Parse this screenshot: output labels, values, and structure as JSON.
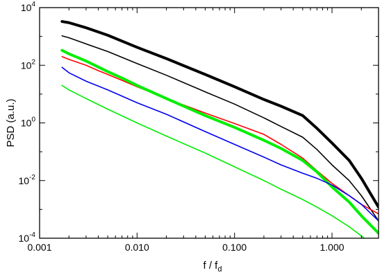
{
  "chart_data": {
    "type": "line",
    "title": "",
    "xlabel": "f / f",
    "xlabel_sub": "d",
    "ylabel": "PSD (a.u.)",
    "xscale": "log",
    "yscale": "log",
    "xlim": [
      0.001,
      3.0
    ],
    "ylim": [
      0.0001,
      10000
    ],
    "grid": false,
    "legend": "none",
    "x_ticks": [
      {
        "value": 0.001,
        "label": "0.001"
      },
      {
        "value": 0.01,
        "label": "0.010"
      },
      {
        "value": 0.1,
        "label": "0.100"
      },
      {
        "value": 1,
        "label": "1.000"
      }
    ],
    "y_ticks": [
      {
        "value": 0.0001,
        "base": "10",
        "exp": "-4"
      },
      {
        "value": 0.01,
        "base": "10",
        "exp": "-2"
      },
      {
        "value": 1,
        "base": "10",
        "exp": "0"
      },
      {
        "value": 100,
        "base": "10",
        "exp": "2"
      },
      {
        "value": 10000,
        "base": "10",
        "exp": "4"
      }
    ],
    "series": [
      {
        "color": "#000000",
        "width": 4,
        "x": [
          0.0017,
          0.002,
          0.003,
          0.005,
          0.01,
          0.02,
          0.05,
          0.1,
          0.2,
          0.3,
          0.5,
          0.7,
          1.0,
          1.5,
          2.0,
          3.0
        ],
        "y": [
          3300,
          3000,
          2000,
          1100,
          420,
          170,
          48,
          18,
          6.5,
          3.8,
          1.8,
          0.65,
          0.2,
          0.05,
          0.012,
          0.0012
        ]
      },
      {
        "color": "#000000",
        "width": 1.6,
        "x": [
          0.0017,
          0.002,
          0.003,
          0.005,
          0.01,
          0.02,
          0.05,
          0.1,
          0.2,
          0.3,
          0.5,
          0.7,
          1.0,
          1.5,
          2.0,
          3.0
        ],
        "y": [
          1050,
          900,
          550,
          300,
          115,
          45,
          12,
          4.5,
          1.5,
          0.75,
          0.32,
          0.12,
          0.035,
          0.01,
          0.003,
          0.0004
        ]
      },
      {
        "color": "#ff0000",
        "width": 1.6,
        "x": [
          0.0017,
          0.002,
          0.003,
          0.004,
          0.005,
          0.007,
          0.01,
          0.02,
          0.05,
          0.1,
          0.2,
          0.3,
          0.5,
          0.7,
          1.0,
          1.5,
          2.0,
          3.0
        ],
        "y": [
          200,
          160,
          100,
          65,
          48,
          30,
          18,
          7,
          2.2,
          0.95,
          0.4,
          0.18,
          0.06,
          0.022,
          0.008,
          0.003,
          0.0015,
          0.0007
        ]
      },
      {
        "color": "#00ee00",
        "width": 4,
        "x": [
          0.0017,
          0.002,
          0.003,
          0.005,
          0.007,
          0.01,
          0.02,
          0.05,
          0.1,
          0.2,
          0.3,
          0.5,
          0.7,
          1.0,
          1.5,
          2.0,
          3.0
        ],
        "y": [
          330,
          250,
          140,
          60,
          36,
          20,
          7,
          1.8,
          0.7,
          0.25,
          0.13,
          0.05,
          0.02,
          0.006,
          0.0018,
          0.0006,
          0.00015
        ]
      },
      {
        "color": "#0000ee",
        "width": 1.6,
        "x": [
          0.0017,
          0.002,
          0.003,
          0.005,
          0.01,
          0.02,
          0.05,
          0.1,
          0.2,
          0.3,
          0.5,
          0.7,
          1.0,
          1.5,
          2.0,
          3.0
        ],
        "y": [
          85,
          55,
          28,
          14,
          5,
          2,
          0.5,
          0.18,
          0.065,
          0.035,
          0.018,
          0.012,
          0.007,
          0.003,
          0.0015,
          0.0004
        ]
      },
      {
        "color": "#00ee00",
        "width": 1.6,
        "x": [
          0.0017,
          0.002,
          0.003,
          0.005,
          0.01,
          0.02,
          0.05,
          0.1,
          0.2,
          0.3,
          0.5,
          0.7,
          1.0,
          1.5,
          2.0,
          3.0
        ],
        "y": [
          20,
          14,
          7,
          3,
          1,
          0.35,
          0.09,
          0.03,
          0.01,
          0.005,
          0.0022,
          0.0012,
          0.0006,
          0.00025,
          0.00012,
          4e-05
        ]
      }
    ]
  }
}
